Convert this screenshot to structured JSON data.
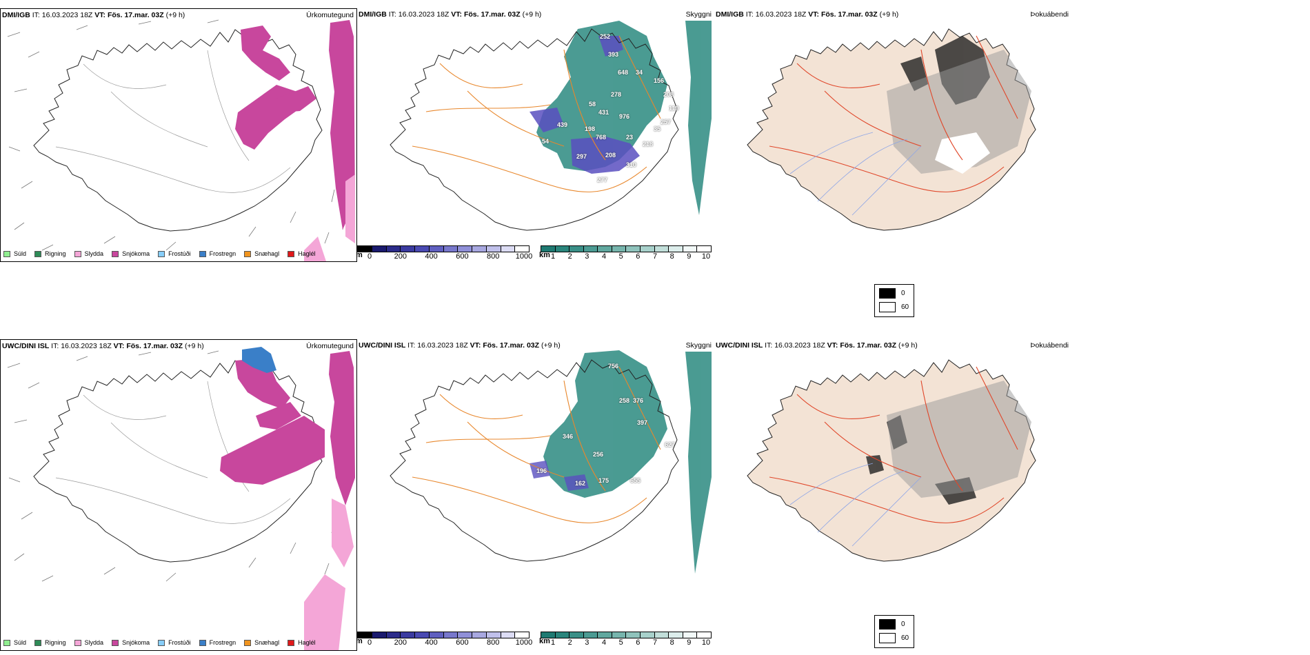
{
  "rows": [
    {
      "model": "DMI/IGB",
      "it_label": "IT:",
      "it_value": "16.03.2023 18Z",
      "vt_label": "VT:",
      "vt_value": "Fös. 17.mar. 03Z",
      "lead": "(+9 h)",
      "titles": [
        "Úrkomutegund",
        "Skyggni",
        "Þokuábendi"
      ],
      "vis_labels": [
        "252",
        "393",
        "648",
        "34",
        "156",
        "278",
        "208",
        "58",
        "431",
        "976",
        "119",
        "257",
        "35",
        "439",
        "198",
        "768",
        "23",
        "54",
        "218",
        "297",
        "208",
        "310",
        "277"
      ]
    },
    {
      "model": "UWC/DINI ISL",
      "it_label": "IT:",
      "it_value": "16.03.2023 18Z",
      "vt_label": "VT:",
      "vt_value": "Fös. 17.mar. 03Z",
      "lead": "(+9 h)",
      "titles": [
        "Úrkomutegund",
        "Skyggni",
        "Þokuábendi"
      ],
      "vis_labels": [
        "756",
        "258",
        "376",
        "397",
        "346",
        "256",
        "196",
        "162",
        "175",
        "655",
        "627"
      ]
    }
  ],
  "precip_legend": [
    {
      "label": "Súld",
      "color": "#90ee90"
    },
    {
      "label": "Rigning",
      "color": "#2e8b57"
    },
    {
      "label": "Slydda",
      "color": "#f4a6d7"
    },
    {
      "label": "Snjókoma",
      "color": "#c8479d"
    },
    {
      "label": "Frostúði",
      "color": "#87cefa"
    },
    {
      "label": "Frostregn",
      "color": "#3a7fc8"
    },
    {
      "label": "Snæhagl",
      "color": "#f0941e"
    },
    {
      "label": "Haglél",
      "color": "#e0191a"
    }
  ],
  "elev_colorbar": {
    "unit": "m",
    "ticks": [
      "0",
      "200",
      "400",
      "600",
      "800",
      "1000"
    ],
    "colors": [
      "#000000",
      "#1a1a6e",
      "#2c2c8a",
      "#3b3ba0",
      "#4a4ab2",
      "#6060c0",
      "#7878cc",
      "#9090d8",
      "#a8a8e0",
      "#c0c0ea",
      "#dcdcf4",
      "#ffffff"
    ]
  },
  "vis_colorbar": {
    "unit": "km",
    "ticks": [
      "1",
      "2",
      "3",
      "4",
      "5",
      "6",
      "7",
      "8",
      "9",
      "10"
    ],
    "colors": [
      "#1f7a72",
      "#2a857c",
      "#3a8f87",
      "#4c9b93",
      "#61a89f",
      "#77b5ad",
      "#8fc3bc",
      "#a8d1cb",
      "#c2dfda",
      "#dcedeb",
      "#f2f9f8",
      "#ffffff"
    ]
  },
  "fog_legend": [
    {
      "label": "0",
      "color": "#000000"
    },
    {
      "label": "60",
      "color": "#ffffff"
    }
  ],
  "colors": {
    "snow": "#c8479d",
    "sleet": "#f4a6d7",
    "freezing_rain": "#3a7fc8",
    "rain": "#2e8b57",
    "vis_teal": "#2b8a80",
    "vis_purple": "#5a4fc0",
    "road_orange": "#e8872c",
    "road_red": "#e0472a",
    "land_beige": "#f3e3d5",
    "river_blue": "#8ea6e6"
  }
}
